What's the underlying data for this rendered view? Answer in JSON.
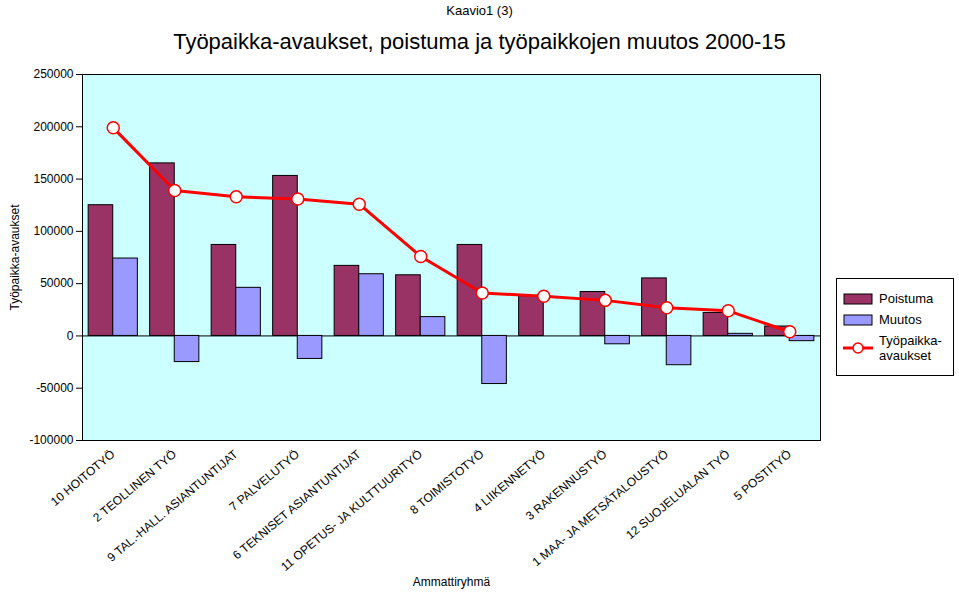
{
  "chart_data": {
    "type": "bar",
    "annotations": [
      "Kaavio1 (3)"
    ],
    "title": "Työpaikka-avaukset, poistuma ja työpaikkojen muutos 2000-15",
    "x_label": "Ammattiryhmä",
    "y_label": "Työpaikka-avaukset",
    "categories": [
      "10 HOITOTYÖ",
      "2 TEOLLINEN TYÖ",
      "9 TAL.-HALL. ASIANTUNTIJAT",
      "7 PALVELUTYÖ",
      "6 TEKNISET ASIANTUNTIJAT",
      "11 OPETUS- JA KULTTUURITYÖ",
      "8 TOIMISTOTYÖ",
      "4 LIIKENNETYÖ",
      "3 RAKENNUSTYÖ",
      "1 MAA- JA METSÄTALOUSTYÖ",
      "12 SUOJELUALAN TYÖ",
      "5 POSTITYÖ"
    ],
    "series": [
      {
        "name": "Poistuma",
        "type": "bar",
        "color": "#993366",
        "values": [
          125000,
          165000,
          87000,
          153000,
          67000,
          58000,
          87000,
          38000,
          42000,
          55000,
          22000,
          9000
        ]
      },
      {
        "name": "Muutos",
        "type": "bar",
        "color": "#9999ff",
        "values": [
          74000,
          -25000,
          46000,
          -22000,
          59000,
          18000,
          -46000,
          0,
          -8000,
          -28000,
          2000,
          -5000
        ]
      },
      {
        "name": "Työpaikka-avaukset",
        "type": "line",
        "color": "#ff0000",
        "marker": "circle",
        "values": [
          199000,
          139000,
          133000,
          131000,
          126000,
          76000,
          41000,
          38000,
          34000,
          27000,
          24000,
          4000
        ]
      }
    ],
    "ylim": [
      -100000,
      250000
    ],
    "yticks": [
      -100000,
      -50000,
      0,
      50000,
      100000,
      150000,
      200000,
      250000
    ],
    "legend": "right"
  }
}
